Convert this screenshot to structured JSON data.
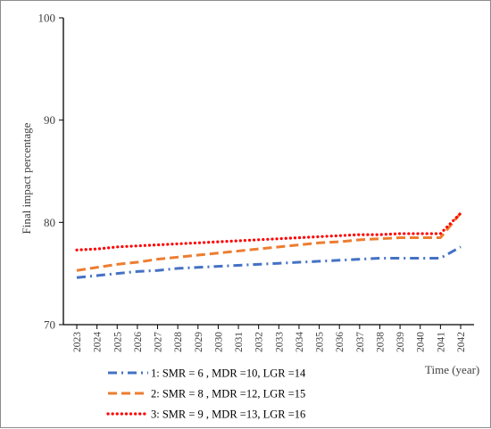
{
  "chart_data": {
    "type": "line",
    "title": "",
    "xlabel": "Time (year)",
    "ylabel": "Final impact percentage",
    "ylim": [
      70,
      100
    ],
    "yticks": [
      70,
      80,
      90,
      100
    ],
    "grid": false,
    "legend_position": "bottom-left",
    "categories": [
      "2023",
      "2024",
      "2025",
      "2026",
      "2027",
      "2028",
      "2029",
      "2030",
      "2031",
      "2032",
      "2033",
      "2034",
      "2035",
      "2036",
      "2037",
      "2038",
      "2039",
      "2040",
      "2041",
      "2042"
    ],
    "series": [
      {
        "name": "1: SMR = 6 , MDR =10, LGR =14",
        "color": "#4472c4",
        "style": "dash-dot",
        "values": [
          74.6,
          74.8,
          75.0,
          75.2,
          75.3,
          75.5,
          75.6,
          75.7,
          75.8,
          75.9,
          76.0,
          76.1,
          76.2,
          76.3,
          76.4,
          76.5,
          76.5,
          76.5,
          76.5,
          77.6
        ]
      },
      {
        "name": "2: SMR = 8 , MDR =12, LGR =15",
        "color": "#ed7d31",
        "style": "dashed",
        "values": [
          75.3,
          75.6,
          75.9,
          76.1,
          76.4,
          76.6,
          76.8,
          77.0,
          77.2,
          77.4,
          77.6,
          77.8,
          78.0,
          78.1,
          78.3,
          78.4,
          78.5,
          78.5,
          78.5,
          80.9
        ]
      },
      {
        "name": "3: SMR = 9 , MDR =13, LGR =16",
        "color": "#ff0000",
        "style": "dotted",
        "values": [
          77.3,
          77.4,
          77.6,
          77.7,
          77.8,
          77.9,
          78.0,
          78.1,
          78.2,
          78.3,
          78.4,
          78.5,
          78.6,
          78.7,
          78.8,
          78.8,
          78.9,
          78.9,
          78.9,
          80.9
        ]
      }
    ]
  }
}
